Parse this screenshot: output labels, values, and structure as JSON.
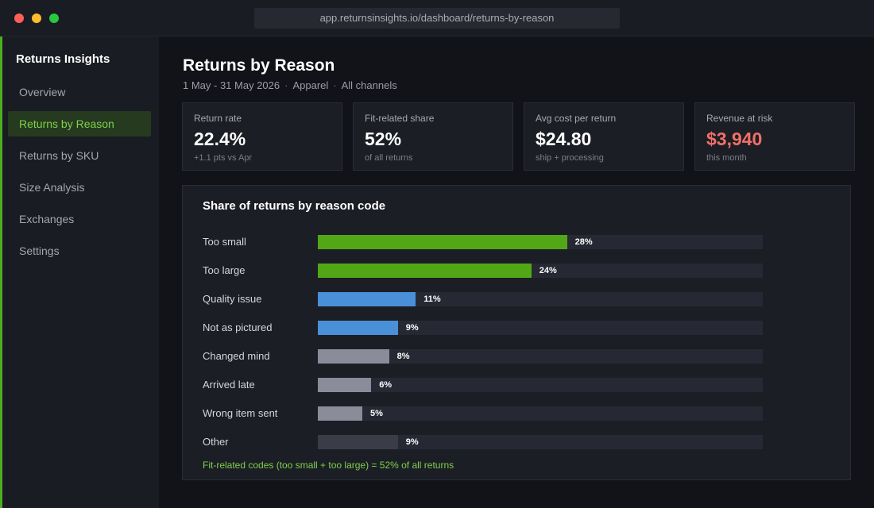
{
  "window": {
    "url": "app.returnsinsights.io/dashboard/returns-by-reason"
  },
  "sidebar": {
    "brand": "Returns Insights",
    "items": [
      {
        "label": "Overview",
        "active": false
      },
      {
        "label": "Returns by Reason",
        "active": true
      },
      {
        "label": "Returns by SKU",
        "active": false
      },
      {
        "label": "Size Analysis",
        "active": false
      },
      {
        "label": "Exchanges",
        "active": false
      },
      {
        "label": "Settings",
        "active": false
      }
    ]
  },
  "header": {
    "title": "Returns by Reason",
    "date_range": "1 May - 31 May 2026",
    "category": "Apparel",
    "channels": "All channels"
  },
  "kpis": [
    {
      "label": "Return rate",
      "value": "22.4%",
      "sub": "+1.1 pts vs Apr"
    },
    {
      "label": "Fit-related share",
      "value": "52%",
      "sub": "of all returns"
    },
    {
      "label": "Avg cost per return",
      "value": "$24.80",
      "sub": "ship + processing"
    },
    {
      "label": "Revenue at risk",
      "value": "$3,940",
      "sub": "this month",
      "color": "#f07068"
    }
  ],
  "colors": {
    "fit": "#52a717",
    "product": "#4a90d9",
    "other": "#8a8c9a",
    "other_dim": "#3a3d47",
    "accent": "#7ed14c"
  },
  "chart_data": {
    "type": "bar",
    "orientation": "horizontal",
    "title": "Share of returns by reason code",
    "xlim": [
      0,
      100
    ],
    "grid": false,
    "categories": [
      "Too small",
      "Too large",
      "Quality issue",
      "Not as pictured",
      "Changed mind",
      "Arrived late",
      "Wrong item sent",
      "Other"
    ],
    "values": [
      28,
      24,
      11,
      9,
      8,
      6,
      5,
      9
    ],
    "labels": [
      "28%",
      "24%",
      "11%",
      "9%",
      "8%",
      "6%",
      "5%",
      "9%"
    ],
    "groups": [
      "fit",
      "fit",
      "product",
      "product",
      "other",
      "other",
      "other",
      "other_dim"
    ],
    "footnote": "Fit-related codes (too small + too large) = 52% of all returns"
  }
}
